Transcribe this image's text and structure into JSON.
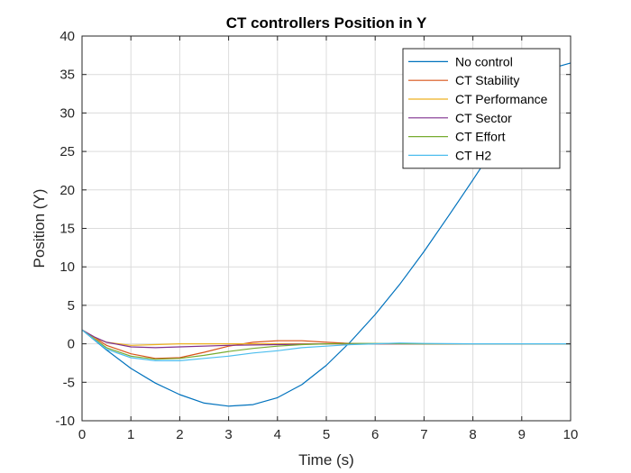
{
  "chart_data": {
    "type": "line",
    "title": "CT controllers Position in Y",
    "xlabel": "Time (s)",
    "ylabel": "Position (Y)",
    "xlim": [
      0,
      10
    ],
    "ylim": [
      -10,
      40
    ],
    "xticks": [
      0,
      1,
      2,
      3,
      4,
      5,
      6,
      7,
      8,
      9,
      10
    ],
    "yticks": [
      -10,
      -5,
      0,
      5,
      10,
      15,
      20,
      25,
      30,
      35,
      40
    ],
    "grid": true,
    "legend_position": "top-right",
    "series": [
      {
        "name": "No control",
        "color": "#0072BD",
        "x": [
          0,
          0.5,
          1,
          1.5,
          2,
          2.5,
          3,
          3.5,
          4,
          4.5,
          5,
          5.5,
          6,
          6.5,
          7,
          7.5,
          8,
          8.5,
          9,
          9.5,
          10
        ],
        "y": [
          1.8,
          -0.8,
          -3.2,
          -5.1,
          -6.6,
          -7.7,
          -8.1,
          -7.9,
          -7.0,
          -5.3,
          -2.8,
          0.3,
          3.8,
          7.7,
          12.0,
          16.6,
          21.3,
          26.1,
          31.0,
          35.6,
          36.5
        ]
      },
      {
        "name": "CT Stability",
        "color": "#D95319",
        "x": [
          0,
          0.5,
          1,
          1.5,
          2,
          2.5,
          3,
          3.5,
          4,
          4.5,
          5,
          5.5,
          6,
          7,
          8,
          9,
          10
        ],
        "y": [
          1.8,
          -0.2,
          -1.3,
          -1.9,
          -1.8,
          -1.1,
          -0.3,
          0.2,
          0.4,
          0.4,
          0.2,
          0.05,
          0.0,
          0.0,
          0.0,
          0.0,
          0.0
        ]
      },
      {
        "name": "CT Performance",
        "color": "#EDB120",
        "x": [
          0,
          0.25,
          0.5,
          1,
          1.5,
          2,
          3,
          4,
          5,
          6,
          7,
          8,
          9,
          10
        ],
        "y": [
          1.8,
          0.8,
          0.2,
          -0.2,
          -0.1,
          0.0,
          0.0,
          0.0,
          0.0,
          0.0,
          0.0,
          0.0,
          0.0,
          0.0
        ]
      },
      {
        "name": "CT Sector",
        "color": "#7E2F8E",
        "x": [
          0,
          0.25,
          0.5,
          1,
          1.5,
          2,
          3,
          4,
          5,
          6,
          7,
          8,
          9,
          10
        ],
        "y": [
          1.8,
          0.9,
          0.2,
          -0.4,
          -0.5,
          -0.4,
          -0.2,
          -0.1,
          0.0,
          0.0,
          0.0,
          0.0,
          0.0,
          0.0
        ]
      },
      {
        "name": "CT Effort",
        "color": "#77AC30",
        "x": [
          0,
          0.5,
          1,
          1.5,
          2,
          2.5,
          3,
          3.5,
          4,
          4.5,
          5,
          5.5,
          6,
          7,
          8,
          9,
          10
        ],
        "y": [
          1.8,
          -0.5,
          -1.6,
          -2.0,
          -1.9,
          -1.5,
          -1.0,
          -0.6,
          -0.3,
          -0.1,
          0.0,
          0.05,
          0.05,
          0.0,
          0.0,
          0.0,
          0.0
        ]
      },
      {
        "name": "CT H2",
        "color": "#4DBEEE",
        "x": [
          0,
          0.5,
          1,
          1.5,
          2,
          2.5,
          3,
          3.5,
          4,
          4.5,
          5,
          5.5,
          6,
          6.5,
          7,
          8,
          9,
          10
        ],
        "y": [
          1.8,
          -0.7,
          -1.8,
          -2.2,
          -2.2,
          -1.9,
          -1.6,
          -1.2,
          -0.9,
          -0.5,
          -0.3,
          -0.1,
          0.0,
          0.1,
          0.05,
          0.0,
          0.0,
          0.0
        ]
      }
    ]
  }
}
